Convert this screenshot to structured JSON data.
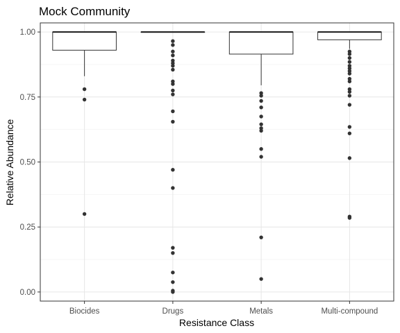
{
  "chart_data": {
    "type": "boxplot",
    "title": "Mock Community",
    "xlabel": "Resistance Class",
    "ylabel": "Relative Abundance",
    "ylim": [
      -0.035,
      1.035
    ],
    "y_ticks": [
      "0.00",
      "0.25",
      "0.50",
      "0.75",
      "1.00"
    ],
    "grid": true,
    "categories": [
      "Biocides",
      "Drugs",
      "Metals",
      "Multi-compound"
    ],
    "boxes": [
      {
        "category": "Biocides",
        "q1": 0.93,
        "median": 1.0,
        "q3": 1.0,
        "whisker_low": 0.83,
        "whisker_high": 1.0,
        "outliers": [
          0.78,
          0.74,
          0.3
        ]
      },
      {
        "category": "Drugs",
        "q1": 1.0,
        "median": 1.0,
        "q3": 1.0,
        "whisker_low": 1.0,
        "whisker_high": 1.0,
        "outliers": [
          0.965,
          0.95,
          0.925,
          0.91,
          0.89,
          0.88,
          0.87,
          0.855,
          0.81,
          0.8,
          0.775,
          0.76,
          0.695,
          0.655,
          0.47,
          0.4,
          0.17,
          0.15,
          0.075,
          0.038,
          0.005,
          0.0
        ]
      },
      {
        "category": "Metals",
        "q1": 0.915,
        "median": 1.0,
        "q3": 1.0,
        "whisker_low": 0.795,
        "whisker_high": 1.0,
        "outliers": [
          0.765,
          0.755,
          0.735,
          0.71,
          0.675,
          0.645,
          0.63,
          0.62,
          0.55,
          0.52,
          0.21,
          0.05
        ]
      },
      {
        "category": "Multi-compound",
        "q1": 0.97,
        "median": 1.0,
        "q3": 1.0,
        "whisker_low": 0.935,
        "whisker_high": 1.0,
        "outliers": [
          0.925,
          0.915,
          0.9,
          0.885,
          0.87,
          0.86,
          0.85,
          0.84,
          0.82,
          0.81,
          0.78,
          0.77,
          0.755,
          0.72,
          0.635,
          0.61,
          0.515,
          0.29,
          0.285
        ]
      }
    ]
  }
}
